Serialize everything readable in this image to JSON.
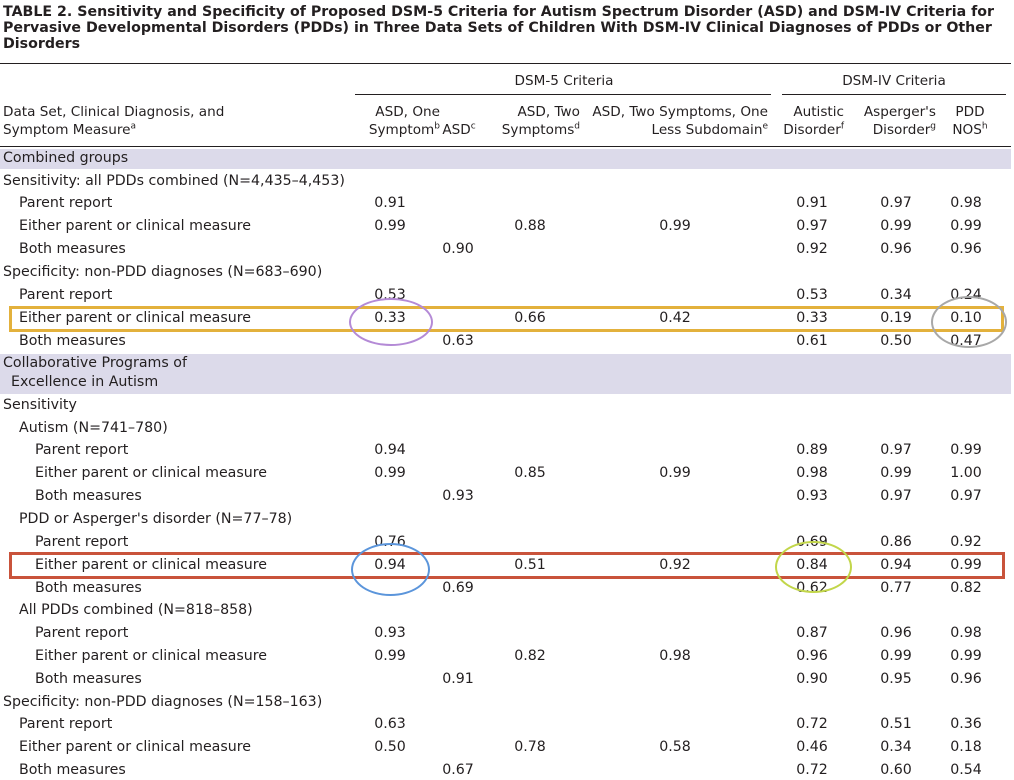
{
  "title": "TABLE 2. Sensitivity and Specificity of Proposed DSM-5 Criteria for Autism Spectrum Disorder (ASD) and DSM-IV Criteria for Pervasive Developmental Disorders (PDDs) in Three Data Sets of Children With DSM-IV Clinical Diagnoses of PDDs or Other Disorders",
  "header": {
    "group_dsm5": "DSM-5 Criteria",
    "group_dsm4": "DSM-IV Criteria",
    "row_header_line1": "Data Set, Clinical Diagnosis, and",
    "row_header_line2": "Symptom Measure",
    "row_header_sup": "a",
    "columns": [
      {
        "line1": "ASD, One",
        "line2": "Symptom",
        "sup": "b"
      },
      {
        "line1": "",
        "line2": "ASD",
        "sup": "c"
      },
      {
        "line1": "ASD, Two",
        "line2": "Symptoms",
        "sup": "d"
      },
      {
        "line1": "ASD, Two Symptoms, One",
        "line2": "Less Subdomain",
        "sup": "e"
      },
      {
        "line1": "Autistic",
        "line2": "Disorder",
        "sup": "f"
      },
      {
        "line1": "Asperger's",
        "line2": "Disorder",
        "sup": "g"
      },
      {
        "line1": "PDD",
        "line2": "NOS",
        "sup": "h"
      }
    ]
  },
  "rows": [
    {
      "type": "group",
      "label": "Combined groups"
    },
    {
      "type": "section",
      "indent": 0,
      "label": "Sensitivity: all PDDs combined (N=4,435–4,453)"
    },
    {
      "type": "data",
      "indent": 1,
      "label": "Parent report",
      "values": [
        "0.91",
        "",
        "",
        "",
        "0.91",
        "0.97",
        "0.98"
      ]
    },
    {
      "type": "data",
      "indent": 1,
      "label": "Either parent or clinical measure",
      "values": [
        "0.99",
        "",
        "0.88",
        "0.99",
        "0.97",
        "0.99",
        "0.99"
      ]
    },
    {
      "type": "data",
      "indent": 1,
      "label": "Both measures",
      "values": [
        "",
        "0.90",
        "",
        "",
        "0.92",
        "0.96",
        "0.96"
      ]
    },
    {
      "type": "section",
      "indent": 0,
      "label": "Specificity: non-PDD diagnoses (N=683–690)"
    },
    {
      "type": "data",
      "indent": 1,
      "label": "Parent report",
      "values": [
        "0.53",
        "",
        "",
        "",
        "0.53",
        "0.34",
        "0.24"
      ]
    },
    {
      "type": "data",
      "indent": 1,
      "label": "Either parent or clinical measure",
      "values": [
        "0.33",
        "",
        "0.66",
        "0.42",
        "0.33",
        "0.19",
        "0.10"
      ]
    },
    {
      "type": "data",
      "indent": 1,
      "label": "Both measures",
      "values": [
        "",
        "0.63",
        "",
        "",
        "0.61",
        "0.50",
        "0.47"
      ]
    },
    {
      "type": "group",
      "label": "Collaborative Programs of",
      "label2": "Excellence in Autism"
    },
    {
      "type": "section",
      "indent": 0,
      "label": "Sensitivity"
    },
    {
      "type": "section",
      "indent": 1,
      "label": "Autism (N=741–780)"
    },
    {
      "type": "data",
      "indent": 2,
      "label": "Parent report",
      "values": [
        "0.94",
        "",
        "",
        "",
        "0.89",
        "0.97",
        "0.99"
      ]
    },
    {
      "type": "data",
      "indent": 2,
      "label": "Either parent or clinical measure",
      "values": [
        "0.99",
        "",
        "0.85",
        "0.99",
        "0.98",
        "0.99",
        "1.00"
      ]
    },
    {
      "type": "data",
      "indent": 2,
      "label": "Both measures",
      "values": [
        "",
        "0.93",
        "",
        "",
        "0.93",
        "0.97",
        "0.97"
      ]
    },
    {
      "type": "section",
      "indent": 1,
      "label": "PDD or Asperger's disorder (N=77–78)"
    },
    {
      "type": "data",
      "indent": 2,
      "label": "Parent report",
      "values": [
        "0.76",
        "",
        "",
        "",
        "0.69",
        "0.86",
        "0.92"
      ]
    },
    {
      "type": "data",
      "indent": 2,
      "label": "Either parent or clinical measure",
      "values": [
        "0.94",
        "",
        "0.51",
        "0.92",
        "0.84",
        "0.94",
        "0.99"
      ]
    },
    {
      "type": "data",
      "indent": 2,
      "label": "Both measures",
      "values": [
        "",
        "0.69",
        "",
        "",
        "0.62",
        "0.77",
        "0.82"
      ]
    },
    {
      "type": "section",
      "indent": 1,
      "label": "All PDDs combined (N=818–858)"
    },
    {
      "type": "data",
      "indent": 2,
      "label": "Parent report",
      "values": [
        "0.93",
        "",
        "",
        "",
        "0.87",
        "0.96",
        "0.98"
      ]
    },
    {
      "type": "data",
      "indent": 2,
      "label": "Either parent or clinical measure",
      "values": [
        "0.99",
        "",
        "0.82",
        "0.98",
        "0.96",
        "0.99",
        "0.99"
      ]
    },
    {
      "type": "data",
      "indent": 2,
      "label": "Both measures",
      "values": [
        "",
        "0.91",
        "",
        "",
        "0.90",
        "0.95",
        "0.96"
      ]
    },
    {
      "type": "section",
      "indent": 0,
      "label": "Specificity: non-PDD diagnoses (N=158–163)"
    },
    {
      "type": "data",
      "indent": 1,
      "label": "Parent report",
      "values": [
        "0.63",
        "",
        "",
        "",
        "0.72",
        "0.51",
        "0.36"
      ]
    },
    {
      "type": "data",
      "indent": 1,
      "label": "Either parent or clinical measure",
      "values": [
        "0.50",
        "",
        "0.78",
        "0.58",
        "0.46",
        "0.34",
        "0.18"
      ]
    },
    {
      "type": "data",
      "indent": 1,
      "label": "Both measures",
      "values": [
        "",
        "0.67",
        "",
        "",
        "0.72",
        "0.60",
        "0.54"
      ]
    }
  ],
  "annotation_colors": {
    "gold": "#e3b13c",
    "red": "#c9533b",
    "purple": "#b48ad6",
    "gray": "#a8a8a8",
    "blue": "#5b95db",
    "green": "#c2d64a",
    "group_bar": "#dcdaea"
  }
}
